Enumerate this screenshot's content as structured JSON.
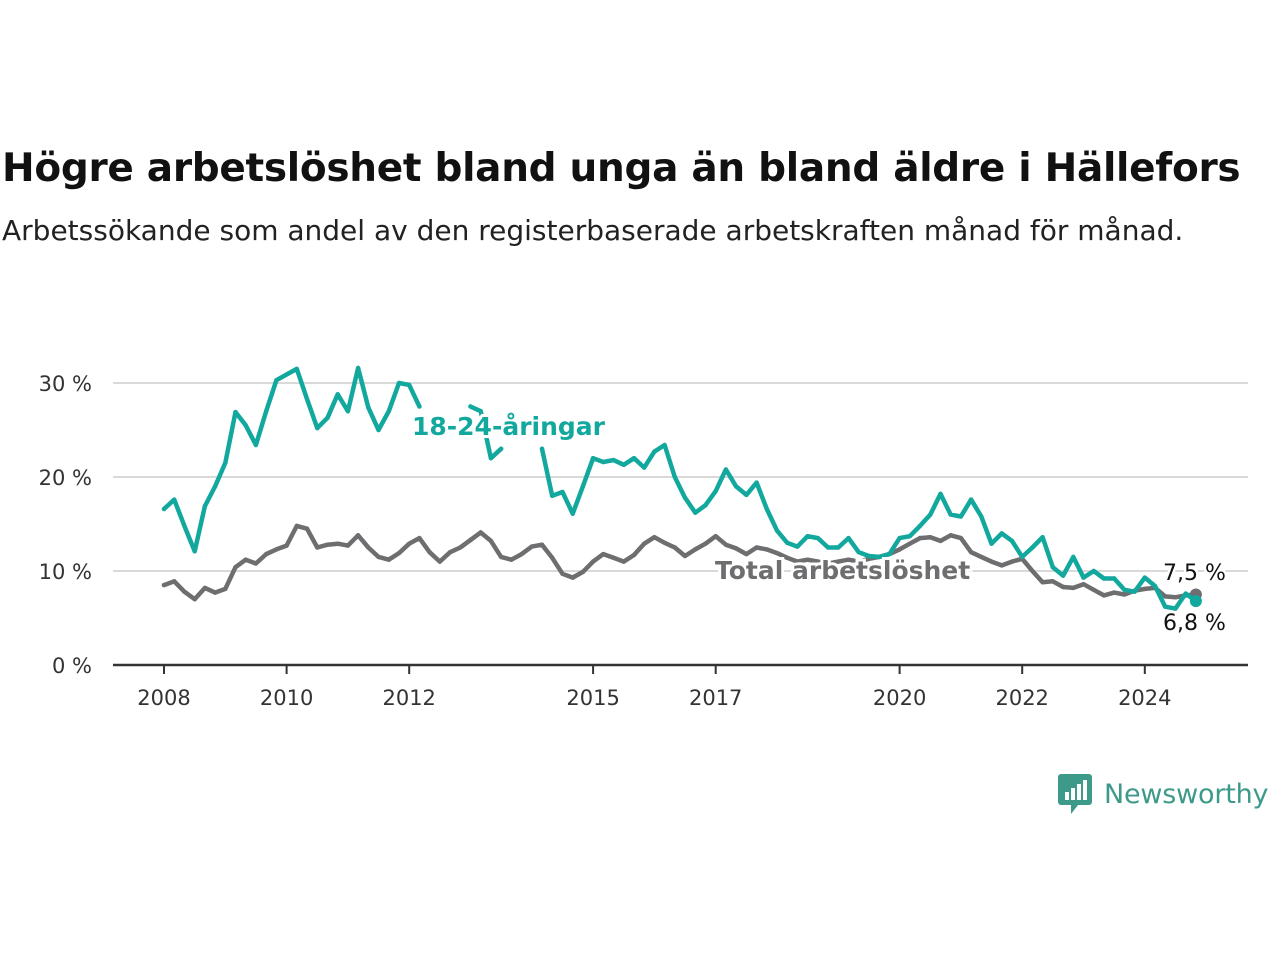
{
  "header": {
    "title": "Högre arbetslöshet bland unga än bland äldre i Hällefors",
    "subtitle": "Arbetssökande som andel av den registerbaserade arbetskraften månad för månad."
  },
  "logo": {
    "text": "Newsworthy",
    "icon": "newsworthy-bar-chart-icon",
    "color": "#3d9a8b"
  },
  "chart_data": {
    "type": "line",
    "title": "Högre arbetslöshet bland unga än bland äldre i Hällefors",
    "subtitle": "Arbetssökande som andel av den registerbaserade arbetskraften månad för månad.",
    "xlabel": "",
    "ylabel": "",
    "x_unit": "month",
    "x_range": [
      "2008-01",
      "2024-11"
    ],
    "x_ticks": [
      {
        "label": "2008",
        "date": "2008-01"
      },
      {
        "label": "2010",
        "date": "2010-01"
      },
      {
        "label": "2012",
        "date": "2012-01"
      },
      {
        "label": "2015",
        "date": "2015-01"
      },
      {
        "label": "2017",
        "date": "2017-01"
      },
      {
        "label": "2020",
        "date": "2020-01"
      },
      {
        "label": "2022",
        "date": "2022-01"
      },
      {
        "label": "2024",
        "date": "2024-01"
      }
    ],
    "ylim": [
      0,
      32
    ],
    "y_ticks": [
      {
        "value": 0,
        "label": "0 %"
      },
      {
        "value": 10,
        "label": "10 %"
      },
      {
        "value": 20,
        "label": "20 %"
      },
      {
        "value": 30,
        "label": "30 %"
      }
    ],
    "grid": true,
    "legend": "inline labels",
    "series": [
      {
        "name": "Total arbetslöshet",
        "color": "#6e6e70",
        "end_label": "7,5 %",
        "points": [
          [
            "2008-01",
            8.5
          ],
          [
            "2008-03",
            8.9
          ],
          [
            "2008-05",
            7.8
          ],
          [
            "2008-07",
            7.0
          ],
          [
            "2008-09",
            8.2
          ],
          [
            "2008-11",
            7.7
          ],
          [
            "2009-01",
            8.1
          ],
          [
            "2009-03",
            10.4
          ],
          [
            "2009-05",
            11.2
          ],
          [
            "2009-07",
            10.8
          ],
          [
            "2009-09",
            11.8
          ],
          [
            "2009-11",
            12.3
          ],
          [
            "2010-01",
            12.7
          ],
          [
            "2010-03",
            14.8
          ],
          [
            "2010-05",
            14.5
          ],
          [
            "2010-07",
            12.5
          ],
          [
            "2010-09",
            12.8
          ],
          [
            "2010-11",
            12.9
          ],
          [
            "2011-01",
            12.7
          ],
          [
            "2011-03",
            13.8
          ],
          [
            "2011-05",
            12.5
          ],
          [
            "2011-07",
            11.5
          ],
          [
            "2011-09",
            11.2
          ],
          [
            "2011-11",
            11.9
          ],
          [
            "2012-01",
            12.9
          ],
          [
            "2012-03",
            13.5
          ],
          [
            "2012-05",
            12.0
          ],
          [
            "2012-07",
            11.0
          ],
          [
            "2012-09",
            12.0
          ],
          [
            "2012-11",
            12.5
          ],
          [
            "2013-01",
            13.3
          ],
          [
            "2013-03",
            14.1
          ],
          [
            "2013-05",
            13.2
          ],
          [
            "2013-07",
            11.5
          ],
          [
            "2013-09",
            11.2
          ],
          [
            "2013-11",
            11.8
          ],
          [
            "2014-01",
            12.6
          ],
          [
            "2014-03",
            12.8
          ],
          [
            "2014-05",
            11.4
          ],
          [
            "2014-07",
            9.7
          ],
          [
            "2014-09",
            9.3
          ],
          [
            "2014-11",
            9.9
          ],
          [
            "2015-01",
            11.0
          ],
          [
            "2015-03",
            11.8
          ],
          [
            "2015-05",
            11.4
          ],
          [
            "2015-07",
            11.0
          ],
          [
            "2015-09",
            11.7
          ],
          [
            "2015-11",
            12.9
          ],
          [
            "2016-01",
            13.6
          ],
          [
            "2016-03",
            13.0
          ],
          [
            "2016-05",
            12.5
          ],
          [
            "2016-07",
            11.6
          ],
          [
            "2016-09",
            12.3
          ],
          [
            "2016-11",
            12.9
          ],
          [
            "2017-01",
            13.7
          ],
          [
            "2017-03",
            12.8
          ],
          [
            "2017-05",
            12.4
          ],
          [
            "2017-07",
            11.8
          ],
          [
            "2017-09",
            12.5
          ],
          [
            "2017-11",
            12.3
          ],
          [
            "2018-01",
            11.9
          ],
          [
            "2018-03",
            11.4
          ],
          [
            "2018-05",
            11.0
          ],
          [
            "2018-07",
            11.2
          ],
          [
            "2018-09",
            11.0
          ],
          [
            "2018-11",
            10.8
          ],
          [
            "2019-01",
            11.0
          ],
          [
            "2019-03",
            11.2
          ],
          [
            "2019-05",
            11.0
          ],
          [
            "2019-07",
            11.3
          ],
          [
            "2019-09",
            11.5
          ],
          [
            "2019-11",
            11.8
          ],
          [
            "2020-01",
            12.3
          ],
          [
            "2020-03",
            12.9
          ],
          [
            "2020-05",
            13.5
          ],
          [
            "2020-07",
            13.6
          ],
          [
            "2020-09",
            13.2
          ],
          [
            "2020-11",
            13.8
          ],
          [
            "2021-01",
            13.5
          ],
          [
            "2021-03",
            12.0
          ],
          [
            "2021-05",
            11.5
          ],
          [
            "2021-07",
            11.0
          ],
          [
            "2021-09",
            10.6
          ],
          [
            "2021-11",
            11.0
          ],
          [
            "2022-01",
            11.3
          ],
          [
            "2022-03",
            10.0
          ],
          [
            "2022-05",
            8.8
          ],
          [
            "2022-07",
            8.9
          ],
          [
            "2022-09",
            8.3
          ],
          [
            "2022-11",
            8.2
          ],
          [
            "2023-01",
            8.6
          ],
          [
            "2023-03",
            8.0
          ],
          [
            "2023-05",
            7.4
          ],
          [
            "2023-07",
            7.7
          ],
          [
            "2023-09",
            7.5
          ],
          [
            "2023-11",
            7.9
          ],
          [
            "2024-01",
            8.1
          ],
          [
            "2024-03",
            8.2
          ],
          [
            "2024-05",
            7.3
          ],
          [
            "2024-07",
            7.2
          ],
          [
            "2024-09",
            7.4
          ],
          [
            "2024-11",
            7.5
          ]
        ]
      },
      {
        "name": "18-24-åringar",
        "color": "#13a89e",
        "end_label": "6,8 %",
        "points": [
          [
            "2008-01",
            16.6
          ],
          [
            "2008-03",
            17.6
          ],
          [
            "2008-05",
            14.8
          ],
          [
            "2008-07",
            12.1
          ],
          [
            "2008-09",
            16.9
          ],
          [
            "2008-11",
            19.0
          ],
          [
            "2009-01",
            21.5
          ],
          [
            "2009-03",
            26.9
          ],
          [
            "2009-05",
            25.5
          ],
          [
            "2009-07",
            23.4
          ],
          [
            "2009-09",
            27.0
          ],
          [
            "2009-11",
            30.3
          ],
          [
            "2010-01",
            30.9
          ],
          [
            "2010-03",
            31.5
          ],
          [
            "2010-05",
            28.3
          ],
          [
            "2010-07",
            25.2
          ],
          [
            "2010-09",
            26.3
          ],
          [
            "2010-11",
            28.8
          ],
          [
            "2011-01",
            27.0
          ],
          [
            "2011-03",
            31.6
          ],
          [
            "2011-05",
            27.4
          ],
          [
            "2011-07",
            25.0
          ],
          [
            "2011-09",
            27.0
          ],
          [
            "2011-11",
            30.0
          ],
          [
            "2012-01",
            29.8
          ],
          [
            "2012-03",
            27.5
          ],
          null,
          [
            "2013-01",
            27.5
          ],
          [
            "2013-03",
            27.0
          ],
          [
            "2013-05",
            22.0
          ],
          [
            "2013-07",
            23.0
          ],
          null,
          [
            "2014-03",
            23.0
          ],
          [
            "2014-05",
            18.0
          ],
          [
            "2014-07",
            18.4
          ],
          [
            "2014-09",
            16.1
          ],
          [
            "2014-11",
            19.0
          ],
          [
            "2015-01",
            22.0
          ],
          [
            "2015-03",
            21.6
          ],
          [
            "2015-05",
            21.8
          ],
          [
            "2015-07",
            21.3
          ],
          [
            "2015-09",
            22.0
          ],
          [
            "2015-11",
            21.0
          ],
          [
            "2016-01",
            22.7
          ],
          [
            "2016-03",
            23.4
          ],
          [
            "2016-05",
            20.0
          ],
          [
            "2016-07",
            17.8
          ],
          [
            "2016-09",
            16.2
          ],
          [
            "2016-11",
            17.0
          ],
          [
            "2017-01",
            18.5
          ],
          [
            "2017-03",
            20.8
          ],
          [
            "2017-05",
            19.0
          ],
          [
            "2017-07",
            18.1
          ],
          [
            "2017-09",
            19.4
          ],
          [
            "2017-11",
            16.6
          ],
          [
            "2018-01",
            14.3
          ],
          [
            "2018-03",
            13.0
          ],
          [
            "2018-05",
            12.6
          ],
          [
            "2018-07",
            13.7
          ],
          [
            "2018-09",
            13.5
          ],
          [
            "2018-11",
            12.5
          ],
          [
            "2019-01",
            12.5
          ],
          [
            "2019-03",
            13.5
          ],
          [
            "2019-05",
            12.0
          ],
          [
            "2019-07",
            11.6
          ],
          [
            "2019-09",
            11.5
          ],
          [
            "2019-11",
            11.8
          ],
          [
            "2020-01",
            13.5
          ],
          [
            "2020-03",
            13.7
          ],
          [
            "2020-05",
            14.8
          ],
          [
            "2020-07",
            16.0
          ],
          [
            "2020-09",
            18.2
          ],
          [
            "2020-11",
            16.0
          ],
          [
            "2021-01",
            15.8
          ],
          [
            "2021-03",
            17.6
          ],
          [
            "2021-05",
            15.8
          ],
          [
            "2021-07",
            12.9
          ],
          [
            "2021-09",
            14.0
          ],
          [
            "2021-11",
            13.2
          ],
          [
            "2022-01",
            11.5
          ],
          [
            "2022-03",
            12.5
          ],
          [
            "2022-05",
            13.6
          ],
          [
            "2022-07",
            10.4
          ],
          [
            "2022-09",
            9.5
          ],
          [
            "2022-11",
            11.5
          ],
          [
            "2023-01",
            9.3
          ],
          [
            "2023-03",
            10.0
          ],
          [
            "2023-05",
            9.2
          ],
          [
            "2023-07",
            9.2
          ],
          [
            "2023-09",
            8.0
          ],
          [
            "2023-11",
            7.8
          ],
          [
            "2024-01",
            9.3
          ],
          [
            "2024-03",
            8.4
          ],
          [
            "2024-05",
            6.2
          ],
          [
            "2024-07",
            6.0
          ],
          [
            "2024-09",
            7.6
          ],
          [
            "2024-11",
            6.8
          ]
        ]
      }
    ]
  }
}
